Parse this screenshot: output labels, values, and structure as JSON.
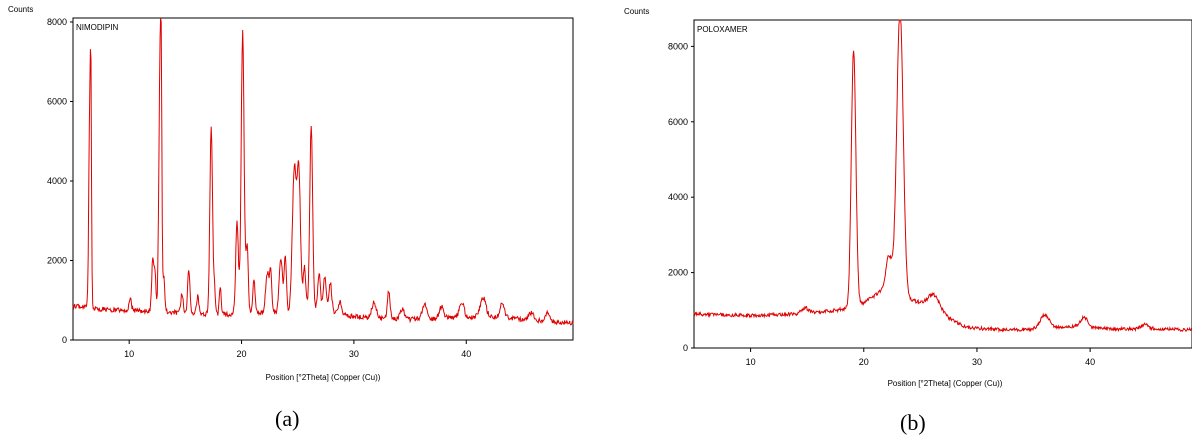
{
  "chart_data": [
    {
      "type": "line",
      "title": "NIMODIPIN",
      "ylabel": "Counts",
      "xlabel": "Position [°2Theta] (Copper (Cu))",
      "caption": "(a)",
      "xlim": [
        5,
        49.5
      ],
      "ylim": [
        0,
        8100
      ],
      "xticks": [
        10,
        20,
        30,
        40
      ],
      "yticks": [
        0,
        2000,
        4000,
        6000,
        8000
      ],
      "color": "#e00000",
      "grid": false,
      "baseline": [
        [
          5,
          850
        ],
        [
          6,
          830
        ],
        [
          8,
          760
        ],
        [
          10,
          740
        ],
        [
          12,
          720
        ],
        [
          14,
          690
        ],
        [
          16,
          660
        ],
        [
          18,
          640
        ],
        [
          20,
          650
        ],
        [
          22,
          680
        ],
        [
          24,
          700
        ],
        [
          26,
          740
        ],
        [
          27.5,
          800
        ],
        [
          29,
          620
        ],
        [
          31,
          560
        ],
        [
          33,
          530
        ],
        [
          35,
          520
        ],
        [
          37,
          530
        ],
        [
          39,
          560
        ],
        [
          41,
          580
        ],
        [
          43,
          560
        ],
        [
          45,
          520
        ],
        [
          47,
          470
        ],
        [
          49.5,
          430
        ]
      ],
      "peaks": [
        [
          6.5,
          5250,
          0.09
        ],
        [
          6.6,
          3400,
          0.05
        ],
        [
          10.1,
          300,
          0.1
        ],
        [
          12.1,
          1300,
          0.1
        ],
        [
          12.3,
          900,
          0.08
        ],
        [
          12.75,
          6100,
          0.11
        ],
        [
          12.85,
          3200,
          0.06
        ],
        [
          13.1,
          800,
          0.08
        ],
        [
          14.7,
          500,
          0.1
        ],
        [
          15.3,
          1100,
          0.1
        ],
        [
          16.1,
          450,
          0.1
        ],
        [
          17.3,
          4700,
          0.12
        ],
        [
          17.6,
          600,
          0.08
        ],
        [
          18.1,
          700,
          0.08
        ],
        [
          19.6,
          2300,
          0.12
        ],
        [
          20.1,
          7100,
          0.13
        ],
        [
          20.5,
          1700,
          0.1
        ],
        [
          21.1,
          900,
          0.1
        ],
        [
          22.3,
          1000,
          0.15
        ],
        [
          22.6,
          950,
          0.1
        ],
        [
          23.5,
          1350,
          0.15
        ],
        [
          23.9,
          1400,
          0.1
        ],
        [
          24.7,
          3600,
          0.18
        ],
        [
          25.1,
          3400,
          0.15
        ],
        [
          25.6,
          1100,
          0.12
        ],
        [
          26.2,
          4600,
          0.13
        ],
        [
          26.9,
          900,
          0.12
        ],
        [
          27.4,
          800,
          0.12
        ],
        [
          27.9,
          700,
          0.12
        ],
        [
          28.8,
          300,
          0.15
        ],
        [
          31.8,
          400,
          0.2
        ],
        [
          33.1,
          700,
          0.12
        ],
        [
          34.3,
          250,
          0.2
        ],
        [
          36.3,
          400,
          0.2
        ],
        [
          37.8,
          300,
          0.2
        ],
        [
          39.6,
          400,
          0.2
        ],
        [
          41.5,
          500,
          0.25
        ],
        [
          43.2,
          350,
          0.2
        ],
        [
          45.8,
          180,
          0.25
        ],
        [
          47.2,
          220,
          0.2
        ]
      ],
      "noise_amplitude": 60
    },
    {
      "type": "line",
      "title": "POLOXAMER",
      "ylabel": "Counts",
      "xlabel": "Position [°2Theta] (Copper (Cu))",
      "caption": "(b)",
      "xlim": [
        5,
        49
      ],
      "ylim": [
        0,
        8700
      ],
      "xticks": [
        10,
        20,
        30,
        40
      ],
      "yticks": [
        0,
        2000,
        4000,
        6000,
        8000
      ],
      "color": "#e00000",
      "grid": false,
      "baseline": [
        [
          5,
          900
        ],
        [
          10,
          860
        ],
        [
          14,
          900
        ],
        [
          16,
          950
        ],
        [
          17.5,
          1000
        ],
        [
          18.5,
          1050
        ],
        [
          20,
          1200
        ],
        [
          21.5,
          1500
        ],
        [
          22.5,
          1700
        ],
        [
          24,
          1300
        ],
        [
          26,
          1100
        ],
        [
          27.5,
          800
        ],
        [
          29,
          550
        ],
        [
          31,
          500
        ],
        [
          33,
          480
        ],
        [
          35,
          500
        ],
        [
          37,
          550
        ],
        [
          39,
          580
        ],
        [
          41,
          520
        ],
        [
          43,
          500
        ],
        [
          45,
          520
        ],
        [
          47,
          500
        ],
        [
          49,
          480
        ]
      ],
      "peaks": [
        [
          19.1,
          6800,
          0.2
        ],
        [
          22.2,
          800,
          0.25
        ],
        [
          23.2,
          7500,
          0.28
        ],
        [
          26.2,
          350,
          0.5
        ],
        [
          36.0,
          350,
          0.4
        ],
        [
          39.5,
          250,
          0.3
        ],
        [
          44.8,
          100,
          0.3
        ],
        [
          14.8,
          150,
          0.3
        ]
      ],
      "noise_amplitude": 45
    }
  ]
}
